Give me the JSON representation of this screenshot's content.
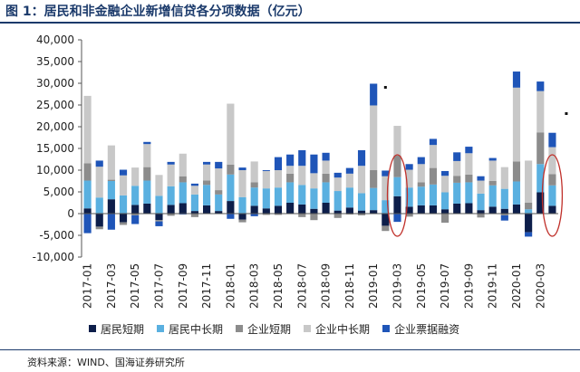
{
  "title": "图 1：居民和非金融企业新增信贷各分项数据（亿元）",
  "source": "资料来源：WIND、国海证券研究所",
  "chart_data": {
    "type": "bar",
    "stacked": true,
    "title": "",
    "xlabel": "",
    "ylabel": "",
    "ylim": [
      -10000,
      40000
    ],
    "yticks": [
      -10000,
      -5000,
      0,
      5000,
      10000,
      15000,
      20000,
      25000,
      30000,
      35000,
      40000
    ],
    "ytick_labels": [
      "-10,000",
      "-5,000",
      "0",
      "5,000",
      "10,000",
      "15,000",
      "20,000",
      "25,000",
      "30,000",
      "35,000",
      "40,000"
    ],
    "grid": false,
    "legend_position": "bottom",
    "categories": [
      "2017-01",
      "2017-02",
      "2017-03",
      "2017-04",
      "2017-05",
      "2017-06",
      "2017-07",
      "2017-08",
      "2017-09",
      "2017-10",
      "2017-11",
      "2017-12",
      "2018-01",
      "2018-02",
      "2018-03",
      "2018-04",
      "2018-05",
      "2018-06",
      "2018-07",
      "2018-08",
      "2018-09",
      "2018-10",
      "2018-11",
      "2018-12",
      "2019-01",
      "2019-02",
      "2019-03",
      "2019-04",
      "2019-05",
      "2019-06",
      "2019-07",
      "2019-08",
      "2019-09",
      "2019-10",
      "2019-11",
      "2019-12",
      "2020-01",
      "2020-02",
      "2020-03",
      "2020-04"
    ],
    "tick_labels": [
      "2017-01",
      "2017-03",
      "2017-05",
      "2017-07",
      "2017-09",
      "2017-11",
      "2018-01",
      "2018-03",
      "2018-05",
      "2018-07",
      "2018-09",
      "2018-11",
      "2019-01",
      "2019-03",
      "2019-05",
      "2019-07",
      "2019-09",
      "2019-11",
      "2020-01",
      "2020-03"
    ],
    "series": [
      {
        "name": "居民短期",
        "color": "#0d1e4a",
        "values": [
          1200,
          -3000,
          3300,
          -2000,
          2000,
          2300,
          -1500,
          2000,
          2400,
          600,
          1900,
          600,
          2900,
          -1400,
          1800,
          1200,
          1800,
          2500,
          2100,
          1100,
          2500,
          700,
          1400,
          700,
          800,
          -2800,
          4000,
          1600,
          1900,
          1900,
          1000,
          2300,
          2400,
          800,
          1600,
          1100,
          2100,
          -4300,
          4900,
          1800
        ]
      },
      {
        "name": "居民中长期",
        "color": "#5ab0e0",
        "values": [
          6400,
          3700,
          4200,
          4200,
          4400,
          5300,
          4100,
          4300,
          4800,
          3800,
          4700,
          3800,
          6100,
          3800,
          4200,
          4600,
          4200,
          4700,
          4500,
          4700,
          4700,
          4500,
          4600,
          4000,
          5100,
          3100,
          4400,
          4400,
          4300,
          4800,
          3900,
          4800,
          4800,
          3800,
          4900,
          4600,
          5300,
          1000,
          6500,
          4700
        ]
      },
      {
        "name": "企业短期",
        "color": "#8c8c8c",
        "values": [
          4000,
          -600,
          300,
          -600,
          -400,
          3100,
          -300,
          -500,
          1400,
          -800,
          1000,
          1000,
          2300,
          -600,
          1200,
          -300,
          -300,
          2000,
          -800,
          -1500,
          2000,
          -1000,
          -200,
          -400,
          4100,
          -1200,
          5000,
          -700,
          1000,
          3800,
          -2100,
          1600,
          1800,
          -900,
          1000,
          -400,
          4600,
          1500,
          7300,
          2600
        ]
      },
      {
        "name": "企业中长期",
        "color": "#c8c8c8",
        "values": [
          15500,
          7100,
          7900,
          4600,
          4200,
          5300,
          4800,
          5000,
          5200,
          2000,
          3700,
          5000,
          14000,
          6200,
          4800,
          4000,
          4000,
          1800,
          4400,
          3500,
          3000,
          3100,
          3200,
          6300,
          14900,
          5500,
          6800,
          4100,
          4200,
          5300,
          3800,
          3400,
          4900,
          3000,
          4700,
          5000,
          17000,
          9700,
          9500,
          6200
        ]
      },
      {
        "name": "企业票据融资",
        "color": "#1f55b8",
        "values": [
          -4500,
          1400,
          -3700,
          1300,
          -2000,
          500,
          -1100,
          600,
          -200,
          500,
          600,
          1500,
          -1200,
          600,
          -600,
          200,
          3000,
          2600,
          3600,
          4300,
          1800,
          1100,
          1300,
          3600,
          5000,
          1300,
          -1900,
          1300,
          1600,
          1400,
          1100,
          2000,
          1500,
          1000,
          600,
          -1200,
          3700,
          -1000,
          2200,
          3300
        ]
      }
    ]
  }
}
